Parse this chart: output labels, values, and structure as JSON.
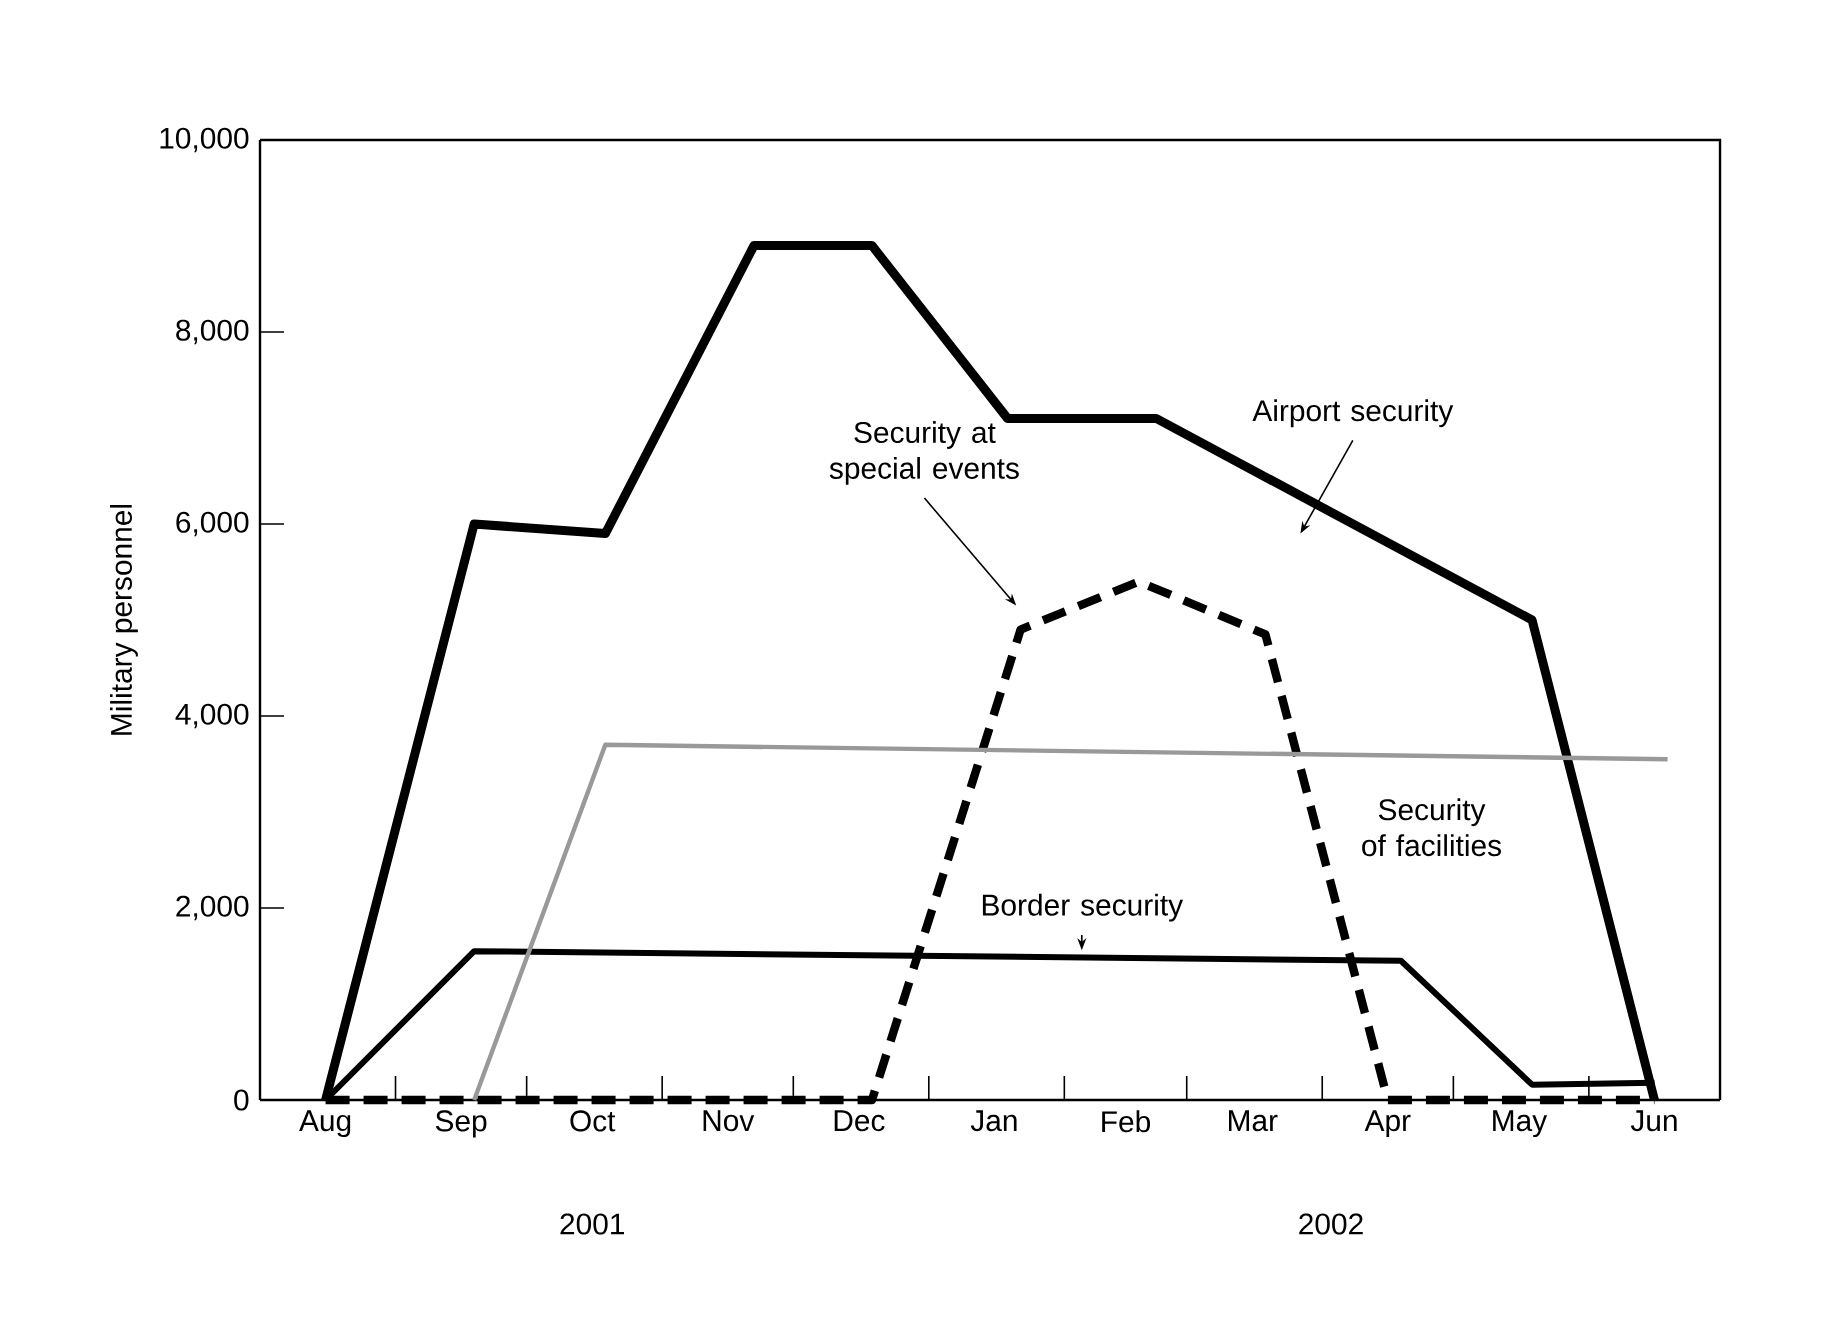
{
  "chart_data": {
    "type": "line",
    "ylabel": "Military personnel",
    "xlim": [
      "2001-08-01",
      "2002-07-01"
    ],
    "ylim": [
      0,
      10000
    ],
    "xticks": [
      {
        "value": "2001-08-16",
        "label": "Aug"
      },
      {
        "value": "2001-09-01",
        "label": null
      },
      {
        "value": "2001-09-16",
        "label": "Sep"
      },
      {
        "value": "2001-10-01",
        "label": null
      },
      {
        "value": "2001-10-16",
        "label": "Oct"
      },
      {
        "value": "2001-11-01",
        "label": null
      },
      {
        "value": "2001-11-16",
        "label": "Nov"
      },
      {
        "value": "2001-12-01",
        "label": null
      },
      {
        "value": "2001-12-16",
        "label": "Dec"
      },
      {
        "value": "2002-01-01",
        "label": null
      },
      {
        "value": "2002-01-16",
        "label": "Jan"
      },
      {
        "value": "2002-02-01",
        "label": null
      },
      {
        "value": "2002-02-15",
        "label": "Feb"
      },
      {
        "value": "2002-03-01",
        "label": null
      },
      {
        "value": "2002-03-16",
        "label": "Mar"
      },
      {
        "value": "2002-04-01",
        "label": null
      },
      {
        "value": "2002-04-16",
        "label": "Apr"
      },
      {
        "value": "2002-05-01",
        "label": null
      },
      {
        "value": "2002-05-16",
        "label": "May"
      },
      {
        "value": "2002-06-01",
        "label": null
      },
      {
        "value": "2002-06-16",
        "label": "Jun"
      }
    ],
    "yticks": [
      0,
      {
        "value": 2000,
        "label": "2,000"
      },
      {
        "value": 4000,
        "label": "4,000"
      },
      {
        "value": 6000,
        "label": "6,000"
      },
      {
        "value": 8000,
        "label": "8,000"
      },
      {
        "value": 10000,
        "label": "10,000"
      }
    ],
    "series": [
      {
        "name": "Airport security",
        "color": "#000000",
        "line_style": "solid",
        "x": [
          "2001-08-16",
          "2001-09-19",
          "2001-10-19",
          "2001-11-22",
          "2001-12-19",
          "2002-01-19",
          "2002-02-22",
          "2002-05-19",
          "2002-06-16"
        ],
        "values": [
          0,
          6000,
          5900,
          8900,
          8900,
          7100,
          7100,
          5000,
          0
        ]
      },
      {
        "name": "Security at special events",
        "color": "#000000",
        "line_style": "dashed",
        "x": [
          "2001-08-16",
          "2001-12-19",
          "2002-01-22",
          "2002-02-18",
          "2002-03-19",
          "2002-04-16",
          "2002-06-16"
        ],
        "values": [
          0,
          0,
          4900,
          5400,
          4850,
          0,
          0
        ]
      },
      {
        "name": "Border security",
        "color": "#000000",
        "line_style": "solid",
        "x": [
          "2001-08-16",
          "2001-09-19",
          "2002-04-19",
          "2002-05-19",
          "2002-06-16"
        ],
        "values": [
          0,
          1550,
          1450,
          160,
          180
        ]
      },
      {
        "name": "Security of facilities",
        "color": "#999999",
        "line_style": "solid",
        "x": [
          "2001-09-19",
          "2001-10-19",
          "2002-06-19"
        ],
        "values": [
          0,
          3700,
          3550
        ]
      }
    ],
    "annotations": [
      "2001",
      "2002"
    ],
    "grid": false,
    "legend": false,
    "marker": "none"
  }
}
